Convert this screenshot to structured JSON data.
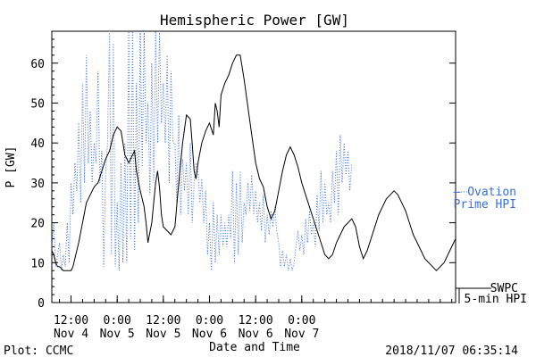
{
  "chart_data": {
    "type": "line",
    "title": "Hemispheric Power [GW]",
    "xlabel": "Date and Time",
    "ylabel": "P [GW]",
    "ylim": [
      0,
      68
    ],
    "xlim": [
      7,
      112
    ],
    "yticks": [
      0,
      10,
      20,
      30,
      40,
      50,
      60
    ],
    "xticks": [
      {
        "t": 12,
        "line1": "12:00",
        "line2": "Nov 4"
      },
      {
        "t": 24,
        "line1": "0:00",
        "line2": "Nov 5"
      },
      {
        "t": 36,
        "line1": "12:00",
        "line2": "Nov 5"
      },
      {
        "t": 48,
        "line1": "0:00",
        "line2": "Nov 6"
      },
      {
        "t": 60,
        "line1": "12:00",
        "line2": "Nov 6"
      },
      {
        "t": 72,
        "line1": "0:00",
        "line2": "Nov 7"
      }
    ],
    "legend_position": "right",
    "series": [
      {
        "name": "Ovation Prime HPI",
        "legend_line1": "— Ovation",
        "legend_line2": "Prime HPI",
        "color": "#3a6fd8",
        "style": "dotted",
        "points": [
          [
            7,
            14
          ],
          [
            7.5,
            20
          ],
          [
            8,
            9
          ],
          [
            8.5,
            12
          ],
          [
            9,
            15
          ],
          [
            9.5,
            8
          ],
          [
            10,
            12
          ],
          [
            10.5,
            9
          ],
          [
            11,
            20
          ],
          [
            11.5,
            10
          ],
          [
            12,
            30
          ],
          [
            12.5,
            22
          ],
          [
            13,
            35
          ],
          [
            13.5,
            28
          ],
          [
            14,
            45
          ],
          [
            14.5,
            25
          ],
          [
            15,
            55
          ],
          [
            15.5,
            30
          ],
          [
            16,
            62
          ],
          [
            16.5,
            35
          ],
          [
            17,
            48
          ],
          [
            17.5,
            30
          ],
          [
            18,
            40
          ],
          [
            18.5,
            35
          ],
          [
            19,
            58
          ],
          [
            19.5,
            30
          ],
          [
            20,
            38
          ],
          [
            20.5,
            9
          ],
          [
            21,
            33
          ],
          [
            21.5,
            40
          ],
          [
            22,
            68
          ],
          [
            22.5,
            12
          ],
          [
            23,
            65
          ],
          [
            23.5,
            9
          ],
          [
            24,
            25
          ],
          [
            24.5,
            8
          ],
          [
            25,
            35
          ],
          [
            25.5,
            10
          ],
          [
            26,
            40
          ],
          [
            26.5,
            10
          ],
          [
            27,
            68
          ],
          [
            27.5,
            16
          ],
          [
            28,
            68
          ],
          [
            28.5,
            13
          ],
          [
            29,
            55
          ],
          [
            29.5,
            20
          ],
          [
            30,
            68
          ],
          [
            30.5,
            34
          ],
          [
            31,
            68
          ],
          [
            31.5,
            40
          ],
          [
            32,
            50
          ],
          [
            32.5,
            27
          ],
          [
            33,
            60
          ],
          [
            33.5,
            30
          ],
          [
            34,
            68
          ],
          [
            34.5,
            40
          ],
          [
            35,
            68
          ],
          [
            35.5,
            45
          ],
          [
            36,
            55
          ],
          [
            36.5,
            40
          ],
          [
            37,
            62
          ],
          [
            37.5,
            30
          ],
          [
            38,
            58
          ],
          [
            38.5,
            40
          ],
          [
            39,
            40
          ],
          [
            39.5,
            25
          ],
          [
            40,
            47
          ],
          [
            40.5,
            22
          ],
          [
            41,
            36
          ],
          [
            41.5,
            28
          ],
          [
            42,
            35
          ],
          [
            42.5,
            22
          ],
          [
            43,
            40
          ],
          [
            43.5,
            20
          ],
          [
            44,
            30
          ],
          [
            44.5,
            35
          ],
          [
            45,
            33
          ],
          [
            45.5,
            25
          ],
          [
            46,
            31
          ],
          [
            46.5,
            20
          ],
          [
            47,
            28
          ],
          [
            47.5,
            12
          ],
          [
            48,
            20
          ],
          [
            48.5,
            8
          ],
          [
            49,
            25
          ],
          [
            49.5,
            10
          ],
          [
            50,
            22
          ],
          [
            50.5,
            12
          ],
          [
            51,
            22
          ],
          [
            51.5,
            14
          ],
          [
            52,
            20
          ],
          [
            52.5,
            14
          ],
          [
            53,
            22
          ],
          [
            53.5,
            16
          ],
          [
            54,
            33
          ],
          [
            54.5,
            10
          ],
          [
            55,
            30
          ],
          [
            55.5,
            12
          ],
          [
            56,
            33
          ],
          [
            56.5,
            15
          ],
          [
            57,
            25
          ],
          [
            57.5,
            22
          ],
          [
            58,
            30
          ],
          [
            58.5,
            23
          ],
          [
            59,
            32
          ],
          [
            59.5,
            22
          ],
          [
            60,
            28
          ],
          [
            60.5,
            20
          ],
          [
            61,
            25
          ],
          [
            61.5,
            18
          ],
          [
            62,
            27
          ],
          [
            62.5,
            15
          ],
          [
            63,
            22
          ],
          [
            63.5,
            17
          ],
          [
            64,
            23
          ],
          [
            64.5,
            19
          ],
          [
            65,
            24
          ],
          [
            65.5,
            18
          ],
          [
            66,
            15
          ],
          [
            66.5,
            9
          ],
          [
            67,
            13
          ],
          [
            67.5,
            9
          ],
          [
            68,
            12
          ],
          [
            68.5,
            8
          ],
          [
            69,
            11
          ],
          [
            69.5,
            8
          ],
          [
            70,
            10
          ],
          [
            70.5,
            14
          ],
          [
            71,
            18
          ],
          [
            71.5,
            13
          ],
          [
            72,
            17
          ],
          [
            72.5,
            12
          ],
          [
            73,
            21
          ],
          [
            73.5,
            15
          ],
          [
            74,
            23
          ],
          [
            74.5,
            17
          ],
          [
            75,
            20
          ],
          [
            75.5,
            14
          ],
          [
            76,
            27
          ],
          [
            76.5,
            18
          ],
          [
            77,
            33
          ],
          [
            77.5,
            20
          ],
          [
            78,
            30
          ],
          [
            78.5,
            22
          ],
          [
            79,
            25
          ],
          [
            79.5,
            20
          ],
          [
            80,
            33
          ],
          [
            80.5,
            25
          ],
          [
            81,
            38
          ],
          [
            81.5,
            22
          ],
          [
            82,
            42
          ],
          [
            82.5,
            30
          ],
          [
            83,
            40
          ],
          [
            83.5,
            32
          ],
          [
            84,
            38
          ],
          [
            84.5,
            28
          ],
          [
            85,
            35
          ]
        ]
      },
      {
        "name": "SWPC 5-min HPI",
        "legend_line1": "SWPC",
        "legend_line2": "5-min HPI",
        "color": "#000000",
        "style": "solid",
        "points": [
          [
            7,
            13
          ],
          [
            7.5,
            12
          ],
          [
            8,
            10
          ],
          [
            8.5,
            9
          ],
          [
            9,
            9
          ],
          [
            10,
            8
          ],
          [
            11,
            8
          ],
          [
            12,
            8
          ],
          [
            12.5,
            9
          ],
          [
            13,
            11
          ],
          [
            14,
            15
          ],
          [
            15,
            20
          ],
          [
            16,
            25
          ],
          [
            17,
            27
          ],
          [
            18,
            29
          ],
          [
            19,
            30
          ],
          [
            20,
            33
          ],
          [
            21,
            36
          ],
          [
            22,
            38
          ],
          [
            23,
            42
          ],
          [
            24,
            44
          ],
          [
            25,
            43
          ],
          [
            26,
            37
          ],
          [
            27,
            35
          ],
          [
            28,
            37
          ],
          [
            28.5,
            38
          ],
          [
            29,
            33
          ],
          [
            30,
            28
          ],
          [
            31,
            24
          ],
          [
            31.5,
            20
          ],
          [
            32,
            15
          ],
          [
            33,
            20
          ],
          [
            34,
            30
          ],
          [
            34.5,
            33
          ],
          [
            35,
            29
          ],
          [
            35.5,
            22
          ],
          [
            36,
            19
          ],
          [
            37,
            18
          ],
          [
            38,
            17
          ],
          [
            39,
            19
          ],
          [
            40,
            30
          ],
          [
            41,
            40
          ],
          [
            42,
            47
          ],
          [
            43,
            46
          ],
          [
            43.5,
            40
          ],
          [
            44,
            33
          ],
          [
            44.5,
            31
          ],
          [
            45,
            35
          ],
          [
            46,
            40
          ],
          [
            47,
            43
          ],
          [
            48,
            45
          ],
          [
            49,
            42
          ],
          [
            49.5,
            50
          ],
          [
            50,
            48
          ],
          [
            50.5,
            44
          ],
          [
            51,
            52
          ],
          [
            52,
            55
          ],
          [
            53,
            57
          ],
          [
            54,
            60
          ],
          [
            55,
            62
          ],
          [
            56,
            62
          ],
          [
            57,
            56
          ],
          [
            58,
            49
          ],
          [
            59,
            42
          ],
          [
            60,
            35
          ],
          [
            61,
            31
          ],
          [
            62,
            29
          ],
          [
            63,
            24
          ],
          [
            64,
            21
          ],
          [
            65,
            23
          ],
          [
            66,
            28
          ],
          [
            67,
            33
          ],
          [
            68,
            37
          ],
          [
            69,
            39
          ],
          [
            70,
            37
          ],
          [
            71,
            34
          ],
          [
            72,
            30
          ],
          [
            73,
            27
          ],
          [
            74,
            24
          ],
          [
            75,
            21
          ],
          [
            76,
            18
          ],
          [
            77,
            15
          ],
          [
            78,
            12
          ],
          [
            79,
            11
          ],
          [
            80,
            12
          ],
          [
            81,
            15
          ],
          [
            82,
            17
          ],
          [
            83,
            19
          ],
          [
            84,
            20
          ],
          [
            85,
            21
          ],
          [
            86,
            19
          ],
          [
            87,
            14
          ],
          [
            88,
            11
          ],
          [
            89,
            13
          ],
          [
            90,
            16
          ],
          [
            91,
            19
          ],
          [
            92,
            22
          ],
          [
            93,
            24
          ],
          [
            94,
            26
          ],
          [
            95,
            27
          ],
          [
            96,
            28
          ],
          [
            97,
            27
          ],
          [
            98,
            25
          ],
          [
            99,
            23
          ],
          [
            100,
            20
          ],
          [
            101,
            17
          ],
          [
            102,
            15
          ],
          [
            103,
            13
          ],
          [
            104,
            11
          ],
          [
            105,
            10
          ],
          [
            106,
            9
          ],
          [
            107,
            8
          ],
          [
            108,
            9
          ],
          [
            109,
            10
          ],
          [
            110,
            12
          ],
          [
            111,
            14
          ],
          [
            112,
            16
          ]
        ]
      }
    ]
  },
  "footer": {
    "left": "Plot: CCMC",
    "right": "2018/11/07 06:35:14"
  }
}
